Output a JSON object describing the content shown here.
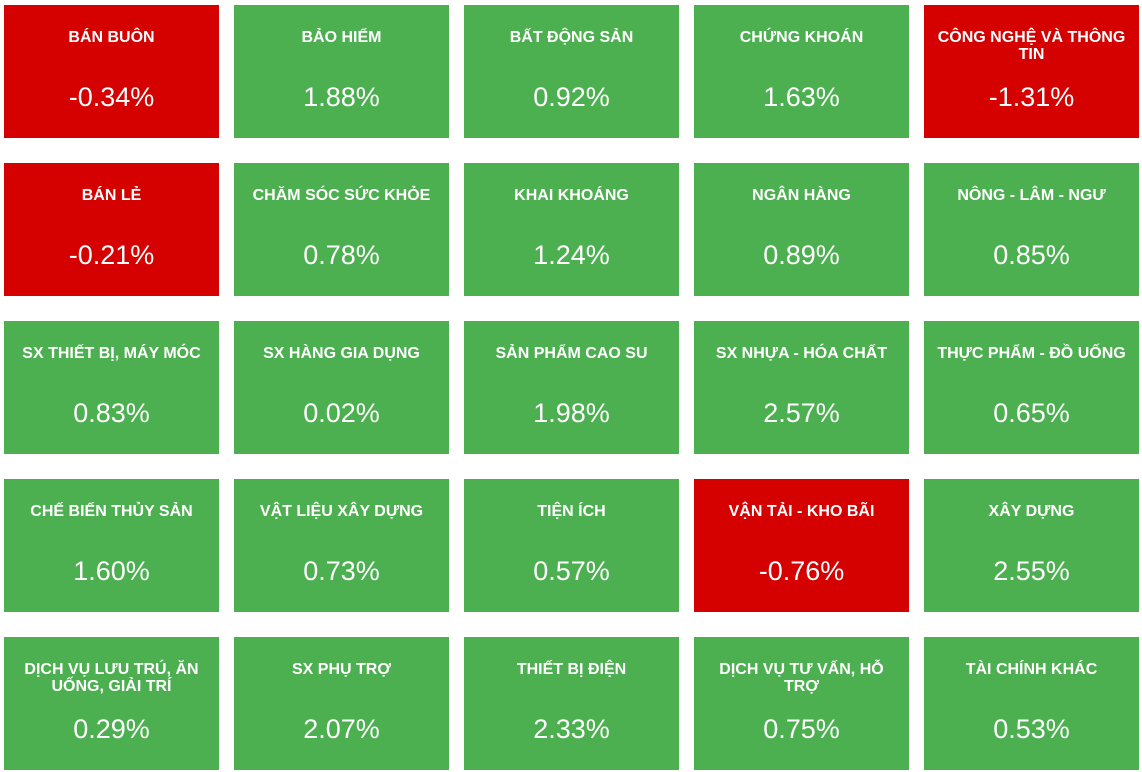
{
  "colors": {
    "positive": "#4caf50",
    "negative": "#d50000",
    "text": "#ffffff"
  },
  "tiles": [
    {
      "name": "BÁN BUÔN",
      "change": "-0.34%",
      "change_value": -0.34,
      "status": "down"
    },
    {
      "name": "BẢO HIỂM",
      "change": "1.88%",
      "change_value": 1.88,
      "status": "up"
    },
    {
      "name": "BẤT ĐỘNG SẢN",
      "change": "0.92%",
      "change_value": 0.92,
      "status": "up"
    },
    {
      "name": "CHỨNG KHOÁN",
      "change": "1.63%",
      "change_value": 1.63,
      "status": "up"
    },
    {
      "name": "CÔNG NGHỆ VÀ THÔNG TIN",
      "change": "-1.31%",
      "change_value": -1.31,
      "status": "down"
    },
    {
      "name": "BÁN LẺ",
      "change": "-0.21%",
      "change_value": -0.21,
      "status": "down"
    },
    {
      "name": "CHĂM SÓC SỨC KHỎE",
      "change": "0.78%",
      "change_value": 0.78,
      "status": "up"
    },
    {
      "name": "KHAI KHOÁNG",
      "change": "1.24%",
      "change_value": 1.24,
      "status": "up"
    },
    {
      "name": "NGÂN HÀNG",
      "change": "0.89%",
      "change_value": 0.89,
      "status": "up"
    },
    {
      "name": "NÔNG - LÂM - NGƯ",
      "change": "0.85%",
      "change_value": 0.85,
      "status": "up"
    },
    {
      "name": "SX THIẾT BỊ, MÁY MÓC",
      "change": "0.83%",
      "change_value": 0.83,
      "status": "up"
    },
    {
      "name": "SX HÀNG GIA DỤNG",
      "change": "0.02%",
      "change_value": 0.02,
      "status": "up"
    },
    {
      "name": "SẢN PHẨM CAO SU",
      "change": "1.98%",
      "change_value": 1.98,
      "status": "up"
    },
    {
      "name": "SX NHỰA - HÓA CHẤT",
      "change": "2.57%",
      "change_value": 2.57,
      "status": "up"
    },
    {
      "name": "THỰC PHẨM - ĐỒ UỐNG",
      "change": "0.65%",
      "change_value": 0.65,
      "status": "up"
    },
    {
      "name": "CHẾ BIẾN THỦY SẢN",
      "change": "1.60%",
      "change_value": 1.6,
      "status": "up"
    },
    {
      "name": "VẬT LIỆU XÂY DỰNG",
      "change": "0.73%",
      "change_value": 0.73,
      "status": "up"
    },
    {
      "name": "TIỆN ÍCH",
      "change": "0.57%",
      "change_value": 0.57,
      "status": "up"
    },
    {
      "name": "VẬN TẢI - KHO BÃI",
      "change": "-0.76%",
      "change_value": -0.76,
      "status": "down"
    },
    {
      "name": "XÂY DỰNG",
      "change": "2.55%",
      "change_value": 2.55,
      "status": "up"
    },
    {
      "name": "DỊCH VỤ LƯU TRÚ, ĂN UỐNG, GIẢI TRÍ",
      "change": "0.29%",
      "change_value": 0.29,
      "status": "up"
    },
    {
      "name": "SX PHỤ TRỢ",
      "change": "2.07%",
      "change_value": 2.07,
      "status": "up"
    },
    {
      "name": "THIẾT BỊ ĐIỆN",
      "change": "2.33%",
      "change_value": 2.33,
      "status": "up"
    },
    {
      "name": "DỊCH VỤ TƯ VẤN, HỖ TRỢ",
      "change": "0.75%",
      "change_value": 0.75,
      "status": "up"
    },
    {
      "name": "TÀI CHÍNH KHÁC",
      "change": "0.53%",
      "change_value": 0.53,
      "status": "up"
    }
  ]
}
